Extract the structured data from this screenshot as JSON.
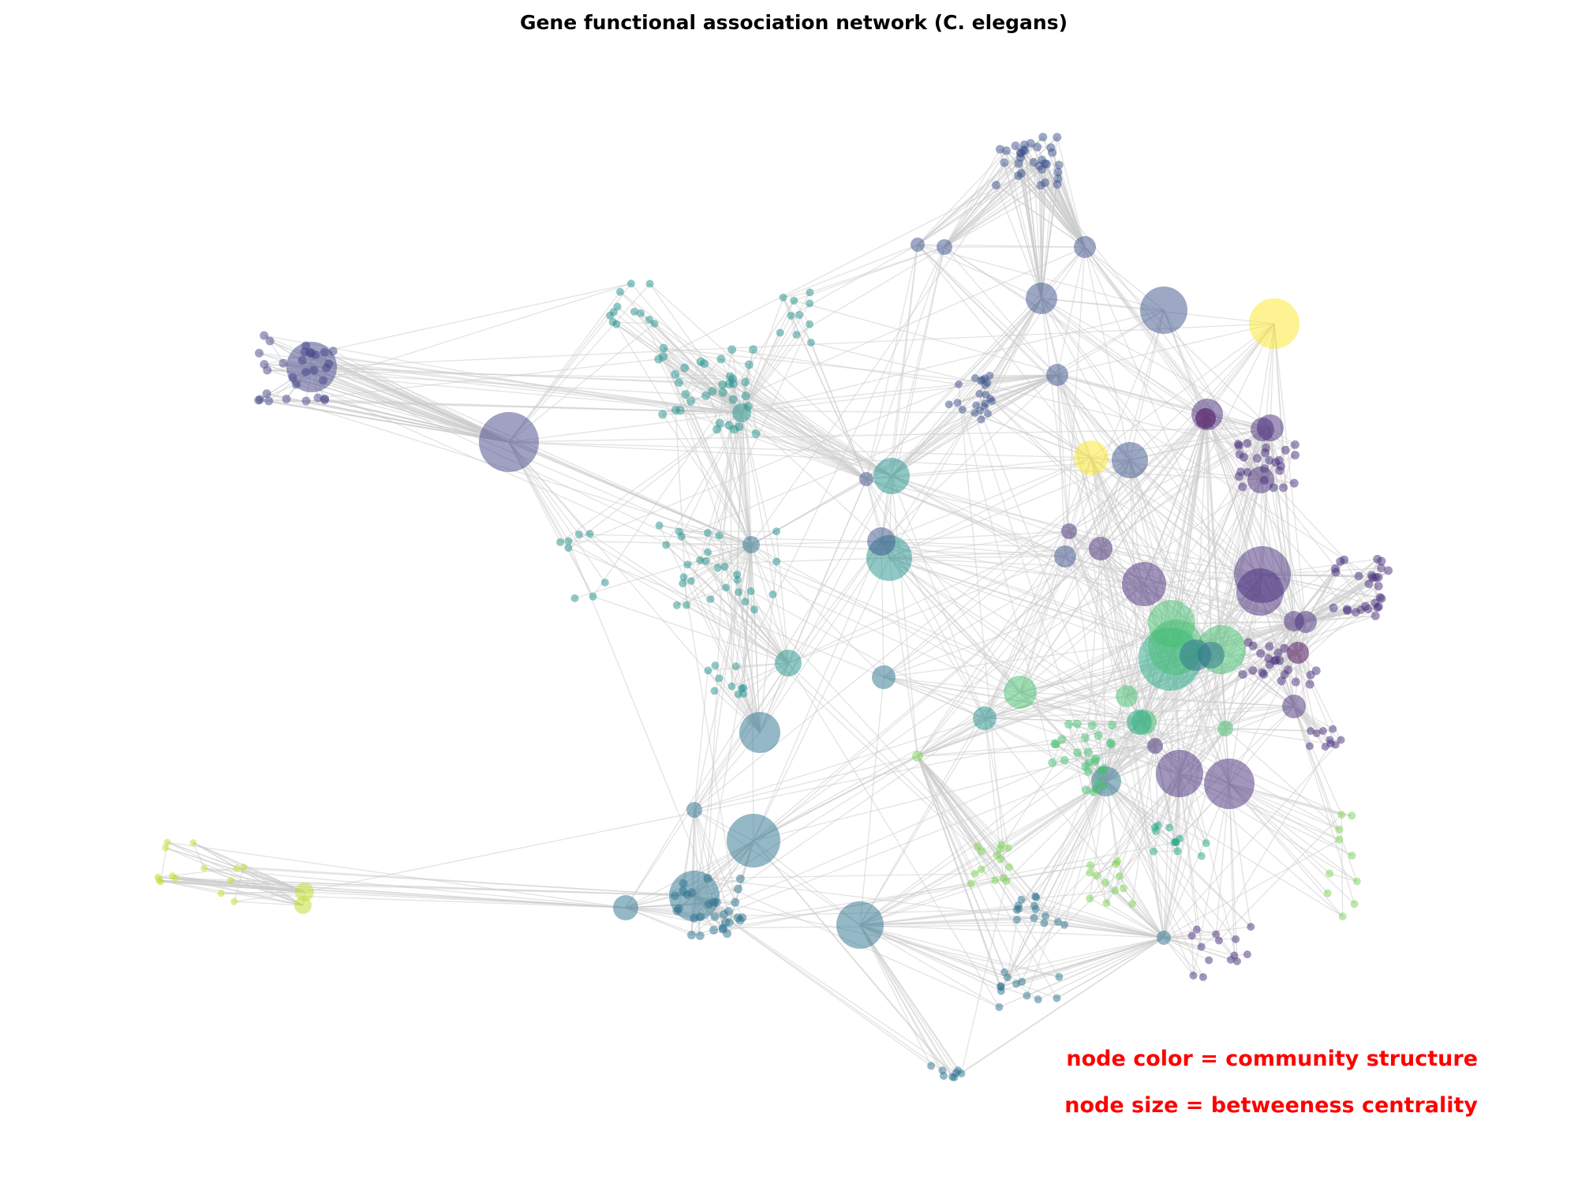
{
  "title": "Gene functional association network (C. elegans)",
  "annotations": {
    "color_note": "node color = community structure",
    "size_note": "node size = betweeness centrality"
  },
  "colors": {
    "annotation_text": "#ff0000",
    "edge": "#cccccc",
    "background": "#ffffff",
    "community_palette": [
      "#440154",
      "#472d7b",
      "#3b528b",
      "#2c728e",
      "#21918c",
      "#28ae80",
      "#5ec962",
      "#addc30",
      "#fde725"
    ]
  },
  "encoding": {
    "node_color": "community structure",
    "node_size": "betweenness centrality"
  }
}
